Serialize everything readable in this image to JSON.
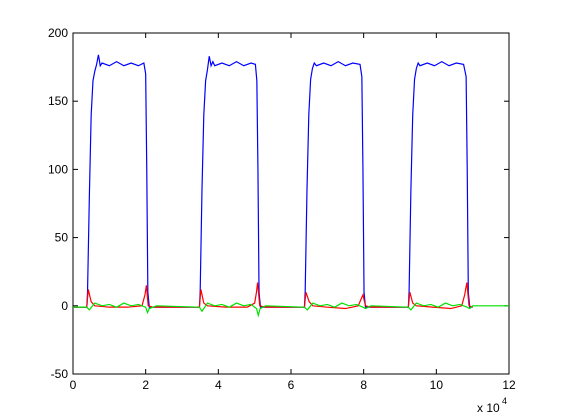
{
  "chart_data": {
    "type": "line",
    "xlim": [
      0,
      12
    ],
    "xticks": [
      0,
      2,
      4,
      6,
      8,
      10,
      12
    ],
    "ylim": [
      -50,
      200
    ],
    "yticks": [
      -50,
      0,
      50,
      100,
      150,
      200
    ],
    "x_multiplier": "x 10",
    "x_multiplier_exp": "4",
    "series": [
      {
        "color": "#0000ff",
        "x": [
          0,
          0.38,
          0.4,
          0.45,
          0.5,
          0.55,
          0.6,
          0.65,
          0.7,
          0.75,
          0.8,
          1.0,
          1.2,
          1.4,
          1.6,
          1.8,
          1.95,
          2.0,
          2.03,
          2.06,
          2.1,
          3.48,
          3.5,
          3.55,
          3.6,
          3.65,
          3.7,
          3.75,
          3.8,
          3.85,
          3.9,
          4.1,
          4.3,
          4.5,
          4.7,
          4.9,
          5.02,
          5.06,
          5.09,
          5.12,
          5.16,
          6.37,
          6.39,
          6.44,
          6.49,
          6.54,
          6.59,
          6.64,
          6.7,
          6.9,
          7.1,
          7.3,
          7.5,
          7.7,
          7.9,
          7.95,
          7.98,
          8.01,
          8.05,
          9.23,
          9.25,
          9.3,
          9.35,
          9.4,
          9.45,
          9.5,
          9.55,
          9.75,
          9.95,
          10.15,
          10.35,
          10.55,
          10.75,
          10.82,
          10.85,
          10.88,
          10.92,
          11.0
        ],
        "values": [
          -1,
          -1,
          10,
          80,
          140,
          165,
          172,
          177,
          184,
          176,
          178,
          176,
          179,
          176,
          178,
          176,
          178,
          170,
          100,
          10,
          -1,
          -1,
          10,
          85,
          140,
          165,
          173,
          183,
          176,
          179,
          176,
          178,
          176,
          179,
          176,
          178,
          177,
          165,
          100,
          10,
          -1,
          -1,
          10,
          85,
          140,
          166,
          174,
          178,
          176,
          178,
          176,
          179,
          176,
          178,
          177,
          168,
          100,
          10,
          -1,
          -1,
          10,
          85,
          140,
          166,
          174,
          178,
          176,
          178,
          176,
          179,
          176,
          178,
          177,
          168,
          100,
          10,
          -1,
          -1
        ]
      },
      {
        "color": "#ff0000",
        "x": [
          0,
          0.38,
          0.42,
          0.5,
          0.6,
          1.0,
          1.5,
          1.9,
          1.98,
          2.02,
          2.07,
          2.2,
          3.48,
          3.52,
          3.6,
          3.7,
          4.2,
          4.8,
          5.0,
          5.05,
          5.08,
          5.14,
          5.3,
          6.37,
          6.41,
          6.5,
          6.6,
          7.0,
          7.5,
          7.85,
          7.93,
          7.98,
          8.05,
          8.2,
          9.23,
          9.27,
          9.35,
          9.45,
          9.9,
          10.4,
          10.7,
          10.78,
          10.84,
          10.9,
          11.0
        ],
        "values": [
          -1,
          -1,
          12,
          3,
          0,
          -1,
          -1,
          0,
          8,
          15,
          0,
          -1,
          -1,
          12,
          2,
          0,
          -1,
          -1,
          2,
          10,
          17,
          0,
          -1,
          -1,
          10,
          3,
          0,
          -1,
          -2,
          0,
          5,
          8,
          0,
          -1,
          -1,
          10,
          2,
          0,
          -1,
          -2,
          0,
          8,
          17,
          0,
          -1
        ]
      },
      {
        "color": "#00e000",
        "x": [
          0,
          0.38,
          0.45,
          0.6,
          0.8,
          1.0,
          1.2,
          1.4,
          1.6,
          1.8,
          2.0,
          2.05,
          2.1,
          2.3,
          3.48,
          3.55,
          3.7,
          3.9,
          4.1,
          4.3,
          4.5,
          4.7,
          4.9,
          5.05,
          5.1,
          5.15,
          5.3,
          6.37,
          6.45,
          6.6,
          6.8,
          7.0,
          7.2,
          7.4,
          7.6,
          7.8,
          7.98,
          8.05,
          8.2,
          9.23,
          9.3,
          9.45,
          9.65,
          9.85,
          10.05,
          10.25,
          10.45,
          10.65,
          10.85,
          10.92,
          11.0,
          12.0
        ],
        "values": [
          -1,
          -1,
          -3,
          2,
          0,
          1,
          -1,
          2,
          0,
          1,
          -1,
          -5,
          -2,
          0,
          -1,
          -4,
          2,
          0,
          1,
          -1,
          2,
          0,
          1,
          -2,
          -7,
          -2,
          0,
          -1,
          -3,
          2,
          0,
          1,
          -1,
          2,
          0,
          1,
          -1,
          -2,
          0,
          -1,
          -3,
          2,
          0,
          1,
          -1,
          2,
          0,
          1,
          -1,
          -2,
          0,
          0
        ]
      }
    ]
  }
}
